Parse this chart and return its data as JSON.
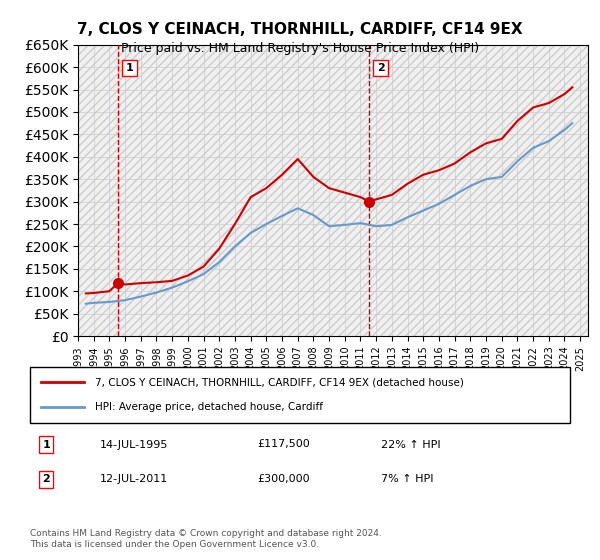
{
  "title": "7, CLOS Y CEINACH, THORNHILL, CARDIFF, CF14 9EX",
  "subtitle": "Price paid vs. HM Land Registry's House Price Index (HPI)",
  "legend_line1": "7, CLOS Y CEINACH, THORNHILL, CARDIFF, CF14 9EX (detached house)",
  "legend_line2": "HPI: Average price, detached house, Cardiff",
  "transaction1_date": "14-JUL-1995",
  "transaction1_price": "£117,500",
  "transaction1_hpi": "22% ↑ HPI",
  "transaction2_date": "12-JUL-2011",
  "transaction2_price": "£300,000",
  "transaction2_hpi": "7% ↑ HPI",
  "footer": "Contains HM Land Registry data © Crown copyright and database right 2024.\nThis data is licensed under the Open Government Licence v3.0.",
  "ylim": [
    0,
    650000
  ],
  "yticks": [
    0,
    50000,
    100000,
    150000,
    200000,
    250000,
    300000,
    350000,
    400000,
    450000,
    500000,
    550000,
    600000,
    650000
  ],
  "xlim_start": 1993.0,
  "xlim_end": 2025.5,
  "red_line_color": "#cc0000",
  "blue_line_color": "#6699cc",
  "marker_color": "#cc0000",
  "vline_color": "#cc0000",
  "hatch_color": "#dddddd",
  "background_color": "#ffffff",
  "grid_color": "#cccccc",
  "transaction1_x": 1995.54,
  "transaction1_y": 117500,
  "transaction2_x": 2011.54,
  "transaction2_y": 300000,
  "red_x": [
    1993.5,
    1994.0,
    1995.0,
    1995.54,
    1996.0,
    1997.0,
    1998.0,
    1999.0,
    2000.0,
    2001.0,
    2002.0,
    2003.0,
    2004.0,
    2005.0,
    2006.0,
    2007.0,
    2008.0,
    2009.0,
    2010.0,
    2011.0,
    2011.54,
    2012.0,
    2013.0,
    2014.0,
    2015.0,
    2016.0,
    2017.0,
    2018.0,
    2019.0,
    2020.0,
    2021.0,
    2022.0,
    2023.0,
    2024.0,
    2024.5
  ],
  "red_y": [
    95000,
    96000,
    100000,
    117500,
    115000,
    118000,
    120000,
    123000,
    135000,
    155000,
    195000,
    250000,
    310000,
    330000,
    360000,
    395000,
    355000,
    330000,
    320000,
    310000,
    300000,
    305000,
    315000,
    340000,
    360000,
    370000,
    385000,
    410000,
    430000,
    440000,
    480000,
    510000,
    520000,
    540000,
    555000
  ],
  "blue_x": [
    1993.5,
    1994.0,
    1995.0,
    1996.0,
    1997.0,
    1998.0,
    1999.0,
    2000.0,
    2001.0,
    2002.0,
    2003.0,
    2004.0,
    2005.0,
    2006.0,
    2007.0,
    2008.0,
    2009.0,
    2010.0,
    2011.0,
    2012.0,
    2013.0,
    2014.0,
    2015.0,
    2016.0,
    2017.0,
    2018.0,
    2019.0,
    2020.0,
    2021.0,
    2022.0,
    2023.0,
    2024.0,
    2024.5
  ],
  "blue_y": [
    72000,
    74000,
    76000,
    80000,
    88000,
    97000,
    108000,
    122000,
    138000,
    165000,
    200000,
    230000,
    250000,
    268000,
    285000,
    270000,
    245000,
    248000,
    252000,
    245000,
    248000,
    265000,
    280000,
    295000,
    315000,
    335000,
    350000,
    355000,
    390000,
    420000,
    435000,
    460000,
    475000
  ]
}
